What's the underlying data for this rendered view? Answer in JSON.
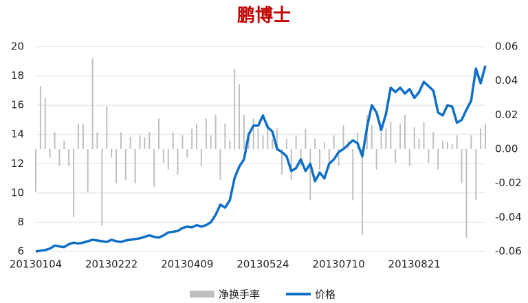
{
  "chart_data": {
    "type": "combo",
    "title": "鹏博士",
    "categories": [
      "20130104",
      null,
      null,
      null,
      null,
      null,
      null,
      null,
      null,
      null,
      null,
      null,
      null,
      null,
      null,
      null,
      "20130222",
      null,
      null,
      null,
      null,
      null,
      null,
      null,
      null,
      null,
      null,
      null,
      null,
      null,
      null,
      null,
      "20130409",
      null,
      null,
      null,
      null,
      null,
      null,
      null,
      null,
      null,
      null,
      null,
      null,
      null,
      null,
      null,
      "20130524",
      null,
      null,
      null,
      null,
      null,
      null,
      null,
      null,
      null,
      null,
      null,
      null,
      null,
      null,
      null,
      "20130710",
      null,
      null,
      null,
      null,
      null,
      null,
      null,
      null,
      null,
      null,
      null,
      null,
      null,
      null,
      null,
      "20130821",
      null,
      null,
      null,
      null,
      null,
      null,
      null,
      null,
      null,
      null,
      null,
      null,
      null,
      null,
      null
    ],
    "series": [
      {
        "name": "净换手率",
        "type": "bar",
        "axis": "y2",
        "color": "#bfbfbf",
        "values": [
          -0.025,
          0.037,
          0.03,
          -0.005,
          0.01,
          -0.01,
          0.005,
          -0.01,
          -0.04,
          0.015,
          0.015,
          -0.025,
          0.053,
          0.01,
          -0.045,
          0.025,
          -0.005,
          -0.02,
          0.01,
          -0.018,
          0.007,
          -0.02,
          0.008,
          0.007,
          0.01,
          -0.022,
          0.018,
          -0.008,
          -0.012,
          0.01,
          -0.015,
          0.008,
          -0.005,
          0.012,
          0.015,
          -0.01,
          0.018,
          0.008,
          0.02,
          -0.018,
          0.015,
          0.005,
          0.047,
          0.038,
          0.02,
          0.01,
          0.018,
          0.012,
          0.008,
          0.015,
          0.006,
          0.012,
          -0.015,
          0.006,
          -0.018,
          0.008,
          -0.01,
          0.012,
          -0.03,
          0.006,
          -0.012,
          0.004,
          -0.01,
          0.008,
          -0.01,
          0.014,
          0.005,
          -0.03,
          0.01,
          -0.05,
          0.02,
          0.014,
          -0.012,
          0.01,
          0.012,
          0.016,
          -0.008,
          0.015,
          0.02,
          -0.01,
          0.013,
          0.006,
          0.016,
          -0.008,
          0.01,
          -0.012,
          0.005,
          0.004,
          0.003,
          0.008,
          -0.02,
          -0.052,
          0.008,
          -0.03,
          0.012,
          0.015
        ]
      },
      {
        "name": "价格",
        "type": "line",
        "color": "#0f6fc6",
        "values": [
          6.0,
          6.05,
          6.1,
          6.2,
          6.4,
          6.35,
          6.3,
          6.5,
          6.6,
          6.55,
          6.6,
          6.7,
          6.8,
          6.75,
          6.7,
          6.65,
          6.8,
          6.7,
          6.65,
          6.75,
          6.8,
          6.85,
          6.9,
          7.0,
          7.1,
          7.0,
          6.95,
          7.1,
          7.3,
          7.35,
          7.4,
          7.6,
          7.7,
          7.65,
          7.8,
          7.7,
          7.8,
          8.0,
          8.5,
          9.2,
          9.0,
          9.5,
          11.0,
          11.8,
          12.3,
          14.0,
          14.6,
          14.6,
          15.3,
          14.5,
          14.2,
          13.0,
          12.8,
          12.5,
          11.5,
          11.7,
          12.3,
          11.5,
          12.0,
          10.8,
          11.4,
          11.0,
          12.0,
          12.3,
          12.8,
          13.0,
          13.3,
          13.6,
          13.4,
          12.5,
          14.5,
          16.0,
          15.5,
          14.3,
          15.4,
          17.2,
          16.9,
          17.2,
          16.8,
          17.1,
          16.5,
          16.9,
          17.6,
          17.3,
          17.0,
          15.5,
          15.3,
          16.0,
          15.9,
          14.8,
          15.0,
          15.7,
          16.3,
          18.5,
          17.5,
          18.7
        ]
      }
    ],
    "ylim": [
      6,
      20
    ],
    "yticks": [
      6,
      8,
      10,
      12,
      14,
      16,
      18,
      20
    ],
    "y2lim": [
      -0.06,
      0.06
    ],
    "y2ticks": [
      -0.06,
      -0.04,
      -0.02,
      {
        "value": 0,
        "label": "0.00"
      },
      0.02,
      0.04,
      0.06
    ],
    "grid": true,
    "legend": "bottom"
  }
}
